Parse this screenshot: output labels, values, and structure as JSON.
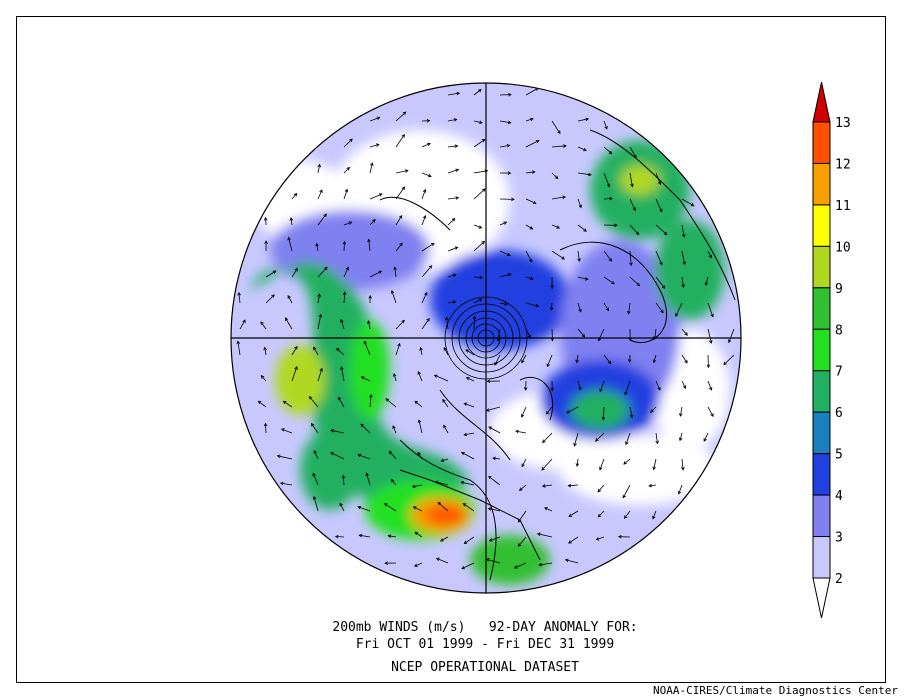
{
  "captions": {
    "line1": "200mb WINDS (m/s)   92-DAY ANOMALY FOR:",
    "line2": "Fri OCT 01 1999 - Fri DEC 31 1999",
    "line3": "NCEP OPERATIONAL DATASET"
  },
  "credit": "NOAA-CIRES/Climate Diagnostics Center",
  "colorbar": {
    "levels": [
      "2",
      "3",
      "4",
      "5",
      "6",
      "7",
      "8",
      "9",
      "10",
      "11",
      "12",
      "13"
    ],
    "colors": [
      "#ffffff",
      "#c8c8ff",
      "#8080f0",
      "#2040e0",
      "#1a80c0",
      "#20b060",
      "#20e020",
      "#30c030",
      "#b0d820",
      "#ffff00",
      "#f8a000",
      "#ff5000",
      "#d00000"
    ]
  }
}
